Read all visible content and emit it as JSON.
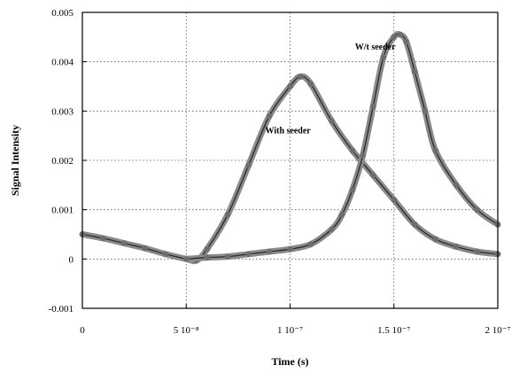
{
  "chart_data": {
    "type": "scatter",
    "title": "",
    "xlabel": "Time (s)",
    "ylabel": "Signal Intensity",
    "xlim": [
      0,
      2e-07
    ],
    "ylim": [
      -0.001,
      0.005
    ],
    "grid": true,
    "x_ticks": [
      {
        "value": 0,
        "label": "0"
      },
      {
        "value": 5e-08,
        "label": "5 10⁻⁸"
      },
      {
        "value": 1e-07,
        "label": "1 10⁻⁷"
      },
      {
        "value": 1.5e-07,
        "label": "1.5 10⁻⁷"
      },
      {
        "value": 2e-07,
        "label": "2 10⁻⁷"
      }
    ],
    "y_ticks": [
      {
        "value": -0.001,
        "label": "-0.001"
      },
      {
        "value": 0,
        "label": "0"
      },
      {
        "value": 0.001,
        "label": "0.001"
      },
      {
        "value": 0.002,
        "label": "0.002"
      },
      {
        "value": 0.003,
        "label": "0.003"
      },
      {
        "value": 0.004,
        "label": "0.004"
      },
      {
        "value": 0.005,
        "label": "0.005"
      }
    ],
    "series": [
      {
        "name": "With seeder",
        "color": "#8a8a8a",
        "x": [
          0,
          1e-08,
          2e-08,
          3e-08,
          4e-08,
          5e-08,
          5.5e-08,
          6e-08,
          7e-08,
          8e-08,
          9e-08,
          1e-07,
          1.05e-07,
          1.1e-07,
          1.2e-07,
          1.3e-07,
          1.4e-07,
          1.5e-07,
          1.6e-07,
          1.7e-07,
          1.8e-07,
          1.9e-07,
          2e-07
        ],
        "y": [
          0.0005,
          0.00042,
          0.00032,
          0.00022,
          0.0001,
          0.0,
          -3e-05,
          0.0002,
          0.0009,
          0.0019,
          0.0029,
          0.0035,
          0.0037,
          0.00355,
          0.0028,
          0.0022,
          0.0017,
          0.0012,
          0.0007,
          0.0004,
          0.00025,
          0.00015,
          0.0001
        ]
      },
      {
        "name": "W/t seeder",
        "color": "#8a8a8a",
        "x": [
          5e-08,
          6e-08,
          7e-08,
          8e-08,
          9e-08,
          1e-07,
          1.1e-07,
          1.2e-07,
          1.25e-07,
          1.3e-07,
          1.35e-07,
          1.4e-07,
          1.45e-07,
          1.5e-07,
          1.53e-07,
          1.56e-07,
          1.6e-07,
          1.65e-07,
          1.7e-07,
          1.8e-07,
          1.9e-07,
          2e-07
        ],
        "y": [
          0.0,
          3e-05,
          5e-05,
          0.0001,
          0.00015,
          0.0002,
          0.0003,
          0.0006,
          0.0009,
          0.0014,
          0.0021,
          0.0031,
          0.0041,
          0.0045,
          0.00455,
          0.0044,
          0.0038,
          0.003,
          0.0022,
          0.0015,
          0.001,
          0.0007
        ]
      }
    ],
    "annotations": [
      {
        "text": "With seeder",
        "x": 9.9e-08,
        "y": 0.00255
      },
      {
        "text": "W/t seeder",
        "x": 1.41e-07,
        "y": 0.00425
      }
    ]
  }
}
